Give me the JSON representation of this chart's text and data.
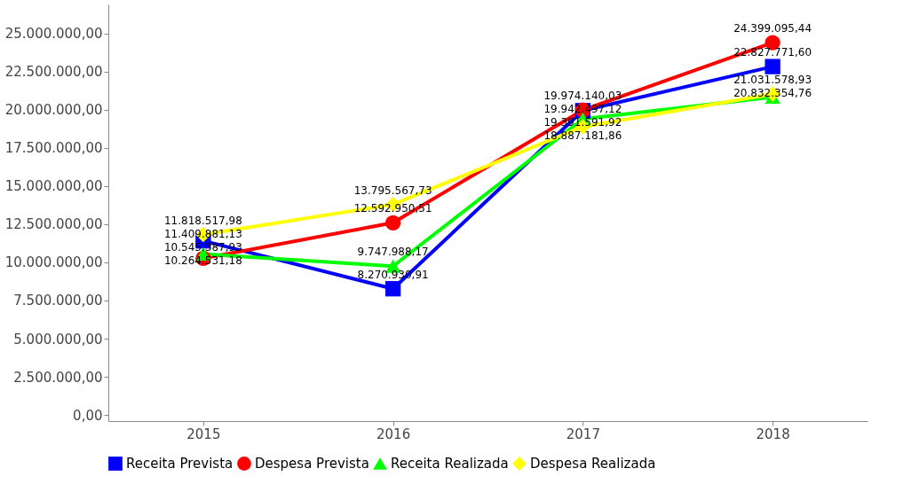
{
  "chart_data": {
    "type": "line",
    "categories": [
      "2015",
      "2016",
      "2017",
      "2018"
    ],
    "series": [
      {
        "name": "Receita Prevista",
        "color": "#0000ff",
        "marker": "square",
        "values": [
          11409881.13,
          8270930.91,
          19942497.12,
          22827771.6
        ],
        "value_labels": [
          "11.409.881,13",
          "8.270.930,91",
          "19.942.497,12",
          "22.827.771,60"
        ]
      },
      {
        "name": "Despesa Prevista",
        "color": "#ff0000",
        "marker": "circle",
        "values": [
          10264531.18,
          12592950.51,
          19974140.03,
          24399095.44
        ],
        "value_labels": [
          "10.264.531,18",
          "12.592.950,51",
          "19.974.140,03",
          "24.399.095,44"
        ]
      },
      {
        "name": "Receita Realizada",
        "color": "#00ff00",
        "marker": "triangle",
        "values": [
          10545387.93,
          9747988.17,
          19391591.92,
          20832354.76
        ],
        "value_labels": [
          "10.545.387,93",
          "9.747.988,17",
          "19.391.591,92",
          "20.832.354,76"
        ]
      },
      {
        "name": "Despesa Realizada",
        "color": "#ffff00",
        "marker": "diamond",
        "values": [
          11818517.98,
          13795567.73,
          18887181.86,
          21031578.93
        ],
        "value_labels": [
          "11.818.517,98",
          "13.795.567,73",
          "18.887.181,86",
          "21.031.578,93"
        ]
      }
    ],
    "ylim": [
      -400000,
      26900000
    ],
    "yticks": [
      {
        "value": 0,
        "label": "0,00"
      },
      {
        "value": 2500000,
        "label": "2.500.000,00"
      },
      {
        "value": 5000000,
        "label": "5.000.000,00"
      },
      {
        "value": 7500000,
        "label": "7.500.000,00"
      },
      {
        "value": 10000000,
        "label": "10.000.000,00"
      },
      {
        "value": 12500000,
        "label": "12.500.000,00"
      },
      {
        "value": 15000000,
        "label": "15.000.000,00"
      },
      {
        "value": 17500000,
        "label": "17.500.000,00"
      },
      {
        "value": 20000000,
        "label": "20.000.000,00"
      },
      {
        "value": 22500000,
        "label": "22.500.000,00"
      },
      {
        "value": 25000000,
        "label": "25.000.000,00"
      }
    ],
    "grid": false,
    "legend": "bottom",
    "line_style": "solid"
  }
}
